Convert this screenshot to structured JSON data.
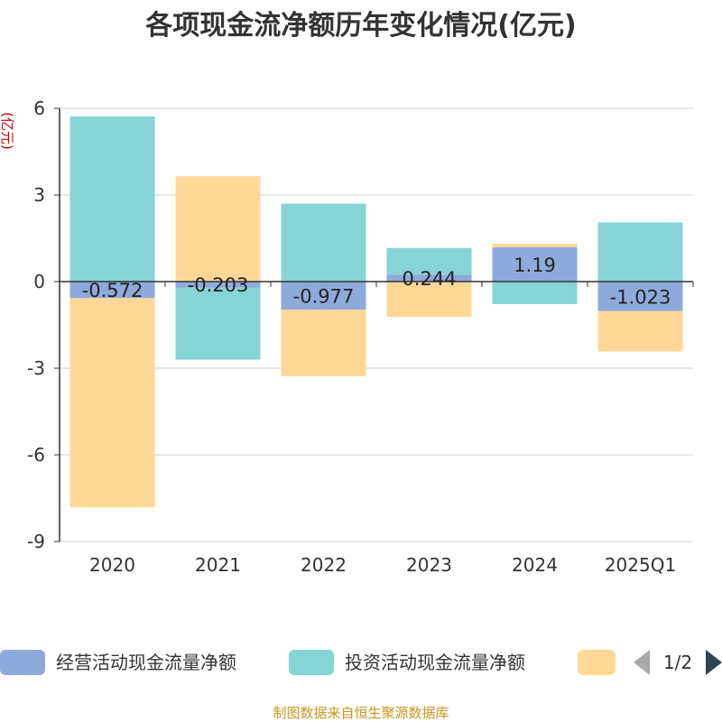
{
  "chart_data": {
    "type": "bar",
    "stacked": true,
    "title": "各项现金流净额历年变化情况(亿元)",
    "ylabel": "(亿元)",
    "ylim": [
      -9,
      6
    ],
    "yticks": [
      6,
      3,
      0,
      -3,
      -6,
      -9
    ],
    "grid": true,
    "categories": [
      "2020",
      "2021",
      "2022",
      "2023",
      "2024",
      "2025Q1"
    ],
    "series": [
      {
        "name": "经营活动现金流量净额",
        "color": "#8eaadb",
        "values": [
          -0.572,
          -0.203,
          -0.977,
          0.244,
          1.19,
          -1.023
        ]
      },
      {
        "name": "投资活动现金流量净额",
        "color": "#86d4d6",
        "values": [
          5.72,
          -2.5,
          2.7,
          0.92,
          -0.78,
          2.05
        ]
      },
      {
        "name": "",
        "color": "#ffd897",
        "values": [
          -7.25,
          3.65,
          -2.3,
          -1.22,
          0.12,
          -1.4
        ]
      }
    ],
    "data_labels": [
      "-0.572",
      "-0.203",
      "-0.977",
      "0.244",
      "1.19",
      "-1.023"
    ],
    "legend_position": "bottom"
  },
  "legend": {
    "page": "1/2"
  },
  "source": "制图数据来自恒生聚源数据库"
}
